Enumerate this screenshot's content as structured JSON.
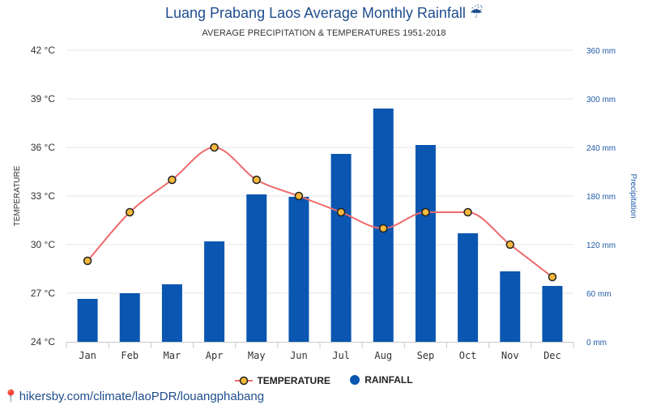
{
  "header": {
    "title": "Luang Prabang Laos Average Monthly Rainfall ☔",
    "subtitle": "AVERAGE PRECIPITATION & TEMPERATURES 1951-2018"
  },
  "footer": {
    "pin_icon": "map-pin-icon",
    "link_text": "hikersby.com/climate/laoPDR/louangphabang"
  },
  "legend": {
    "temperature_label": "TEMPERATURE",
    "rainfall_label": "RAINFALL"
  },
  "colors": {
    "temperature_line": "#ee6a6a",
    "temperature_marker_fill": "#f6b93b",
    "rainfall_bar": "#0a56b0",
    "grid": "#e6e6e6"
  },
  "chart_data": {
    "type": "bar",
    "categories": [
      "Jan",
      "Feb",
      "Mar",
      "Apr",
      "May",
      "Jun",
      "Jul",
      "Aug",
      "Sep",
      "Oct",
      "Nov",
      "Dec"
    ],
    "series": [
      {
        "name": "TEMPERATURE",
        "type": "line",
        "axis": "left",
        "values": [
          29,
          32,
          34,
          36,
          34,
          33,
          32,
          31,
          32,
          32,
          30,
          28
        ]
      },
      {
        "name": "RAINFALL",
        "type": "bar",
        "axis": "right",
        "values": [
          53,
          60,
          71,
          124,
          182,
          179,
          232,
          288,
          243,
          134,
          87,
          69
        ]
      }
    ],
    "ylabel_left": "TEMPERATURE",
    "ylabel_right": "Precipitation",
    "ylim_left": [
      24,
      42
    ],
    "ylim_right": [
      0,
      360
    ],
    "yticks_left": [
      "24 °C",
      "27 °C",
      "30 °C",
      "33 °C",
      "36 °C",
      "39 °C",
      "42 °C"
    ],
    "yticks_right": [
      "0 mm",
      "60 mm",
      "120 mm",
      "180 mm",
      "240 mm",
      "300 mm",
      "360 mm"
    ],
    "grid": true,
    "legend_position": "bottom-center"
  }
}
